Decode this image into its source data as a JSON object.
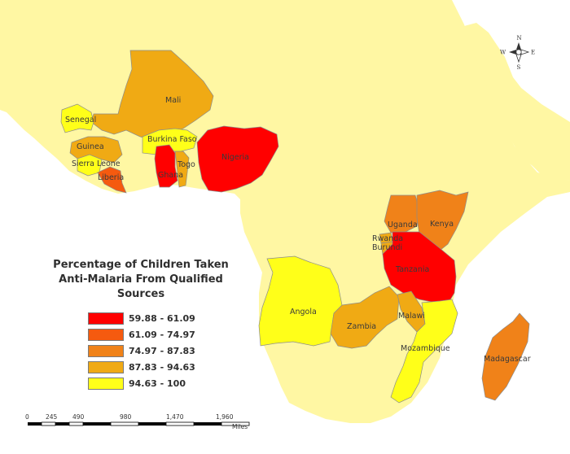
{
  "map": {
    "colors": {
      "land": "#fff7a3",
      "sea": "#ffffff",
      "outline": "#8c8c8c"
    },
    "countries": [
      {
        "name": "Senegal",
        "class": 4
      },
      {
        "name": "Mali",
        "class": 3
      },
      {
        "name": "Burkina Faso",
        "class": 4
      },
      {
        "name": "Guinea",
        "class": 3
      },
      {
        "name": "Sierra Leone",
        "class": 4
      },
      {
        "name": "Liberia",
        "class": 1
      },
      {
        "name": "Ghana",
        "class": 0
      },
      {
        "name": "Togo",
        "class": 3
      },
      {
        "name": "Nigeria",
        "class": 0
      },
      {
        "name": "Uganda",
        "class": 2
      },
      {
        "name": "Kenya",
        "class": 2
      },
      {
        "name": "Rwanda",
        "class": 3
      },
      {
        "name": "Burundi",
        "class": 3
      },
      {
        "name": "Tanzania",
        "class": 0
      },
      {
        "name": "Angola",
        "class": 4
      },
      {
        "name": "Zambia",
        "class": 3
      },
      {
        "name": "Malawi",
        "class": 3
      },
      {
        "name": "Mozambique",
        "class": 4
      },
      {
        "name": "Madagascar",
        "class": 2
      }
    ]
  },
  "legend": {
    "title_line1": "Percentage of Children Taken",
    "title_line2": "Anti-Malaria From Qualified Sources",
    "classes": [
      {
        "label": "59.88 - 61.09",
        "color": "#ff0000"
      },
      {
        "label": "61.09 - 74.97",
        "color": "#f55a0f"
      },
      {
        "label": "74.97 - 87.83",
        "color": "#f08219"
      },
      {
        "label": "87.83 - 94.63",
        "color": "#f0aa14"
      },
      {
        "label": "94.63 - 100",
        "color": "#ffff19"
      }
    ]
  },
  "scale_bar": {
    "ticks": [
      "0",
      "245",
      "490",
      "980",
      "1,470",
      "1,960"
    ],
    "unit": "Miles"
  },
  "compass": {
    "n": "N",
    "s": "S",
    "e": "E",
    "w": "W"
  }
}
